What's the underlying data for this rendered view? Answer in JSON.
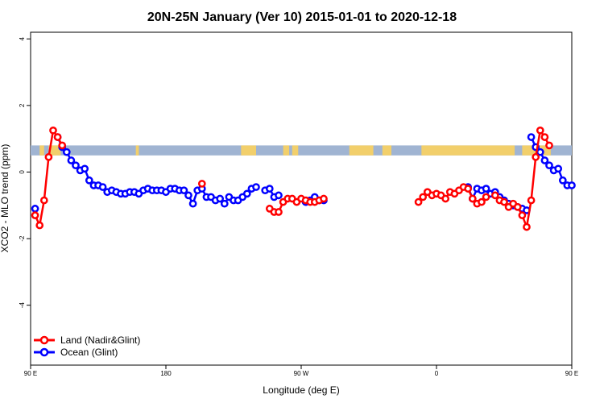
{
  "chart_data": {
    "type": "line",
    "title": "20N-25N January (Ver 10)   2015-01-01 to 2020-12-18",
    "xlabel": "Longitude (deg E)",
    "ylabel": "XCO2 - MLO trend (ppm)",
    "xlim": [
      90,
      450
    ],
    "ylim": [
      -5.8,
      4.2
    ],
    "x_ticks": [
      {
        "value": 90,
        "label": "90 E"
      },
      {
        "value": 180,
        "label": "180"
      },
      {
        "value": 270,
        "label": "90 W"
      },
      {
        "value": 360,
        "label": "0"
      },
      {
        "value": 450,
        "label": "90 E"
      },
      {
        "value": 540,
        "label": "180"
      }
    ],
    "y_ticks": [
      {
        "value": 4,
        "label": "4"
      },
      {
        "value": 2,
        "label": "2"
      },
      {
        "value": 0,
        "label": "0"
      },
      {
        "value": -2,
        "label": "-2"
      },
      {
        "value": -4,
        "label": "-4"
      }
    ],
    "land_band": {
      "ymin": 0.5,
      "ymax": 0.8,
      "ocean_color": "#a0b4d2",
      "land_color": "#f2cf6b",
      "land_ranges": [
        [
          96,
          99
        ],
        [
          102,
          110
        ],
        [
          160,
          162
        ],
        [
          230,
          240
        ],
        [
          258,
          262
        ],
        [
          264,
          268
        ],
        [
          302,
          318
        ],
        [
          324,
          330
        ],
        [
          350,
          412
        ],
        [
          417,
          436
        ]
      ]
    },
    "legend_position": "bottom-left",
    "series": [
      {
        "name": "Land (Nadir&Glint)",
        "color": "#ff0000",
        "segments": [
          {
            "x": [
              93,
              96,
              99,
              102,
              105,
              108,
              111
            ],
            "y": [
              -1.3,
              -1.6,
              -0.85,
              0.45,
              1.25,
              1.05,
              0.8
            ]
          },
          {
            "x": [
              204
            ],
            "y": [
              -0.35
            ]
          },
          {
            "x": [
              249,
              252,
              255,
              258,
              261,
              264,
              267,
              270,
              273,
              276,
              279,
              282,
              285
            ],
            "y": [
              -1.1,
              -1.2,
              -1.2,
              -0.9,
              -0.8,
              -0.8,
              -0.9,
              -0.8,
              -0.85,
              -0.9,
              -0.9,
              -0.85,
              -0.8
            ]
          },
          {
            "x": [
              348,
              351,
              354,
              357,
              360,
              363,
              366,
              369,
              372,
              375,
              378,
              381,
              384,
              387,
              390,
              393
            ],
            "y": [
              -0.9,
              -0.75,
              -0.6,
              -0.7,
              -0.65,
              -0.7,
              -0.8,
              -0.6,
              -0.65,
              -0.55,
              -0.45,
              -0.5,
              -0.8,
              -0.95,
              -0.9,
              -0.75
            ]
          },
          {
            "x": [
              399,
              402,
              405,
              408,
              411,
              414,
              417,
              420,
              423,
              426,
              429,
              432,
              435
            ],
            "y": [
              -0.7,
              -0.85,
              -0.9,
              -1.05,
              -0.95,
              -1.05,
              -1.3,
              -1.65,
              -0.85,
              0.45,
              1.25,
              1.05,
              0.8
            ]
          }
        ]
      },
      {
        "name": "Ocean (Glint)",
        "color": "#0000ff",
        "segments": [
          {
            "x": [
              93
            ],
            "y": [
              -1.1
            ]
          },
          {
            "x": [
              108,
              111,
              114,
              117,
              120,
              123,
              126,
              129,
              132,
              135,
              138,
              141,
              144,
              147,
              150,
              153,
              156,
              159,
              162,
              165,
              168,
              171,
              174,
              177,
              180,
              183,
              186,
              189,
              192,
              195,
              198,
              201,
              204,
              207,
              210,
              213,
              216,
              219,
              222,
              225,
              228,
              231,
              234,
              237,
              240
            ],
            "y": [
              1.05,
              0.75,
              0.6,
              0.35,
              0.2,
              0.05,
              0.1,
              -0.25,
              -0.4,
              -0.4,
              -0.45,
              -0.6,
              -0.55,
              -0.6,
              -0.65,
              -0.65,
              -0.6,
              -0.6,
              -0.65,
              -0.55,
              -0.5,
              -0.55,
              -0.55,
              -0.55,
              -0.6,
              -0.5,
              -0.5,
              -0.55,
              -0.55,
              -0.7,
              -0.95,
              -0.55,
              -0.5,
              -0.75,
              -0.75,
              -0.85,
              -0.8,
              -0.95,
              -0.75,
              -0.85,
              -0.85,
              -0.75,
              -0.65,
              -0.5,
              -0.45
            ]
          },
          {
            "x": [
              246,
              249,
              252,
              255
            ],
            "y": [
              -0.55,
              -0.5,
              -0.75,
              -0.7
            ]
          },
          {
            "x": [
              273,
              276,
              279,
              282,
              285
            ],
            "y": [
              -0.9,
              -0.85,
              -0.75,
              -0.85,
              -0.85
            ]
          },
          {
            "x": [
              381,
              384,
              387,
              390,
              393,
              396,
              399,
              402,
              405,
              408,
              411,
              414,
              417,
              420
            ],
            "y": [
              -0.45,
              -0.8,
              -0.5,
              -0.55,
              -0.5,
              -0.65,
              -0.6,
              -0.75,
              -0.85,
              -0.95,
              -1.0,
              -1.05,
              -1.1,
              -1.15
            ]
          },
          {
            "x": [
              423,
              426,
              429,
              432,
              435,
              438,
              441,
              444,
              447,
              450
            ],
            "y": [
              1.05,
              0.75,
              0.6,
              0.35,
              0.2,
              0.05,
              0.1,
              -0.25,
              -0.4,
              -0.4
            ]
          }
        ]
      }
    ]
  }
}
